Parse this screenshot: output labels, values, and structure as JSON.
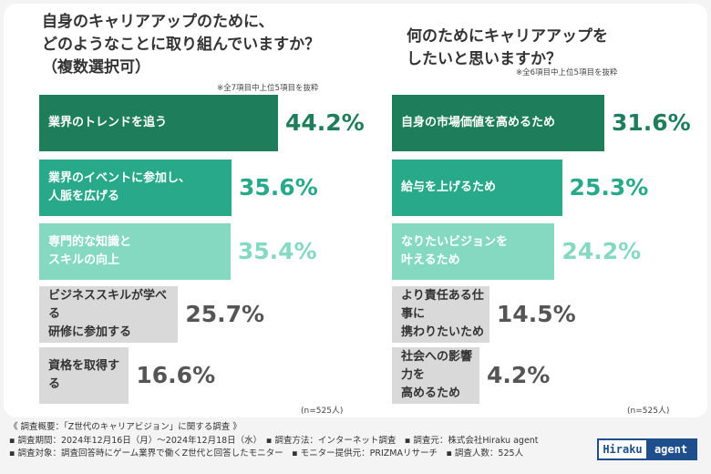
{
  "chart_data": [
    {
      "type": "bar",
      "orientation": "horizontal",
      "title": "自身のキャリアアップのために、\nどのようなことに取り組んでいますか？\n（複数選択可）",
      "note": "※全7項目中上位5項目を抜粋",
      "categories": [
        "業界のトレンドを追う",
        "業界のイベントに参加し、\n人脈を広げる",
        "専門的な知識と\nスキルの向上",
        "ビジネススキルが学べる\n研修に参加する",
        "資格を取得する"
      ],
      "values": [
        44.2,
        35.6,
        35.4,
        25.7,
        16.6
      ],
      "value_labels": [
        "44.2%",
        "35.6%",
        "35.4%",
        "25.7%",
        "16.6%"
      ],
      "unit": "%",
      "sample": "(n=525人)",
      "colors": [
        "#1e7d5a",
        "#27a98a",
        "#86d9c1",
        "#d9d9d9",
        "#d9d9d9"
      ],
      "text_colors": [
        "#ffffff",
        "#ffffff",
        "#ffffff",
        "#333333",
        "#333333"
      ],
      "value_colors": [
        "#1e7d5a",
        "#27a98a",
        "#86d9c1",
        "#555555",
        "#555555"
      ]
    },
    {
      "type": "bar",
      "orientation": "horizontal",
      "title": "何のためにキャリアアップを\nしたいと思いますか？",
      "note": "※全6項目中上位5項目を抜粋",
      "categories": [
        "自身の市場価値を高めるため",
        "給与を上げるため",
        "なりたいビジョンを\n叶えるため",
        "より責任ある仕事に\n携わりたいため",
        "社会への影響力を\n高めるため"
      ],
      "values": [
        31.6,
        25.3,
        24.2,
        14.5,
        4.2
      ],
      "value_labels": [
        "31.6%",
        "25.3%",
        "24.2%",
        "14.5%",
        "4.2%"
      ],
      "unit": "%",
      "sample": "(n=525人)",
      "colors": [
        "#1e7d5a",
        "#27a98a",
        "#86d9c1",
        "#d9d9d9",
        "#d9d9d9"
      ],
      "text_colors": [
        "#ffffff",
        "#ffffff",
        "#ffffff",
        "#333333",
        "#333333"
      ],
      "value_colors": [
        "#1e7d5a",
        "#27a98a",
        "#86d9c1",
        "#555555",
        "#555555"
      ]
    }
  ],
  "footer": {
    "lines": [
      "《 調査概要：「Z世代のキャリアビジョン」に関する調査 》",
      "▪ 調査期間：2024年12月16日（月）～2024年12月18日（水）　▪ 調査方法：インターネット調査　▪ 調査元：株式会社Hiraku agent",
      "▪ 調査対象：調査回答時にゲーム業界で働くZ世代と回答したモニター　▪ モニター提供元：PRIZMAリサーチ　▪ 調査人数：525人"
    ]
  },
  "logo": {
    "part1": "Hiraku",
    "part2": "agent"
  }
}
